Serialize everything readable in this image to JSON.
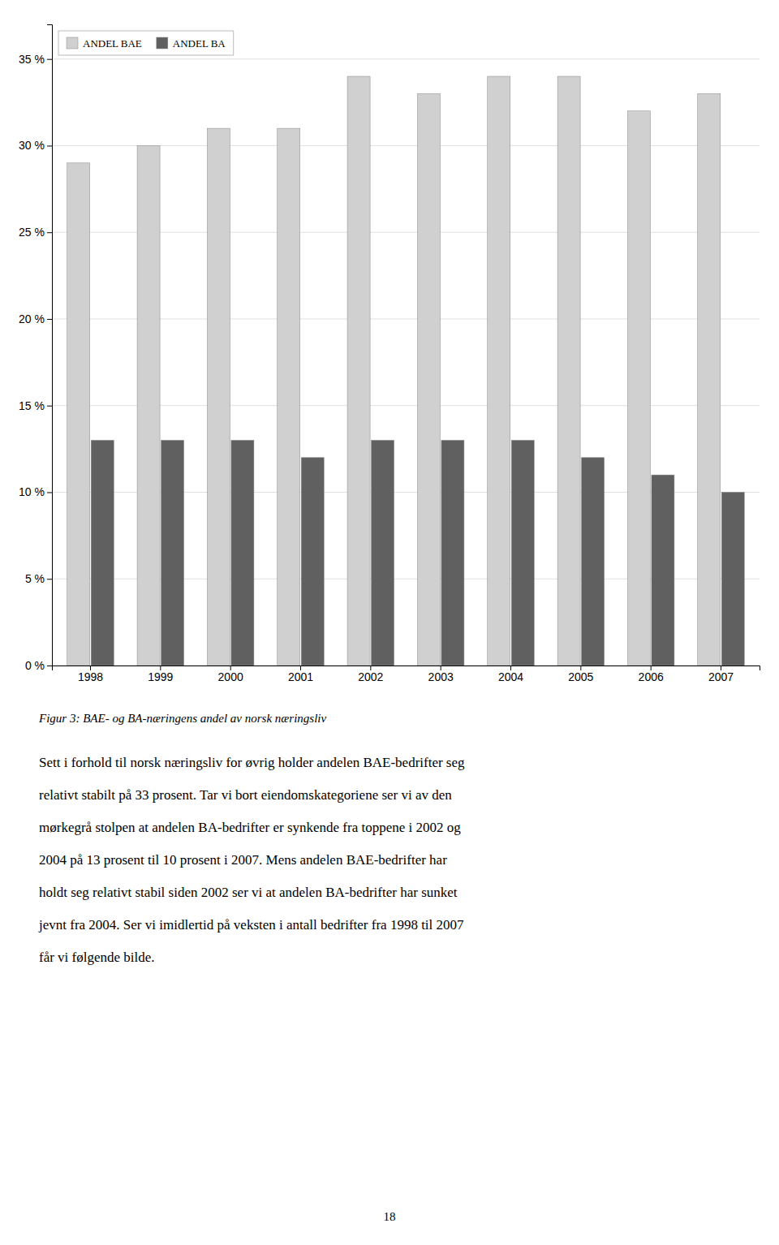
{
  "chart_data": {
    "type": "bar",
    "title": "Figur 3: BAE- og BA-næringens andel av norsk næringsliv",
    "categories": [
      "1998",
      "1999",
      "2000",
      "2001",
      "2002",
      "2003",
      "2004",
      "2005",
      "2006",
      "2007"
    ],
    "series": [
      {
        "name": "ANDEL BAE",
        "color": "#d0d0d0",
        "values": [
          0.29,
          0.3,
          0.31,
          0.31,
          0.34,
          0.33,
          0.34,
          0.34,
          0.32,
          0.33
        ]
      },
      {
        "name": "ANDEL BA",
        "color": "#606060",
        "values": [
          0.13,
          0.13,
          0.13,
          0.12,
          0.13,
          0.13,
          0.13,
          0.12,
          0.11,
          0.1
        ]
      }
    ],
    "ylim": [
      0,
      0.37
    ],
    "yticks": [
      {
        "value": 0.0,
        "label": "0 %"
      },
      {
        "value": 0.05,
        "label": "5 %"
      },
      {
        "value": 0.1,
        "label": "10 %"
      },
      {
        "value": 0.15,
        "label": "15 %"
      },
      {
        "value": 0.2,
        "label": "20 %"
      },
      {
        "value": 0.25,
        "label": "25 %"
      },
      {
        "value": 0.3,
        "label": "30 %"
      },
      {
        "value": 0.35,
        "label": "35 %"
      }
    ],
    "grid": true,
    "legend": "upper-left",
    "annotations": [
      "Sett i forhold til norsk næringsliv for øvrig holder andelen BAE-bedrifter seg",
      "relativt stabilt på 33 prosent. Tar vi bort eiendomskategoriene ser vi av den",
      "mørkegrå stolpen at andelen BA-bedrifter er synkende fra toppene i 2002 og",
      "2004 på 13 prosent til 10 prosent i 2007. Mens andelen BAE-bedrifter har",
      "holdt seg relativt stabil siden 2002 ser vi at andelen BA-bedrifter har sunket",
      "jevnt fra 2004. Ser vi imidlertid på veksten i antall bedrifter fra 1998 til 2007",
      "får vi følgende bilde.",
      "18"
    ]
  }
}
